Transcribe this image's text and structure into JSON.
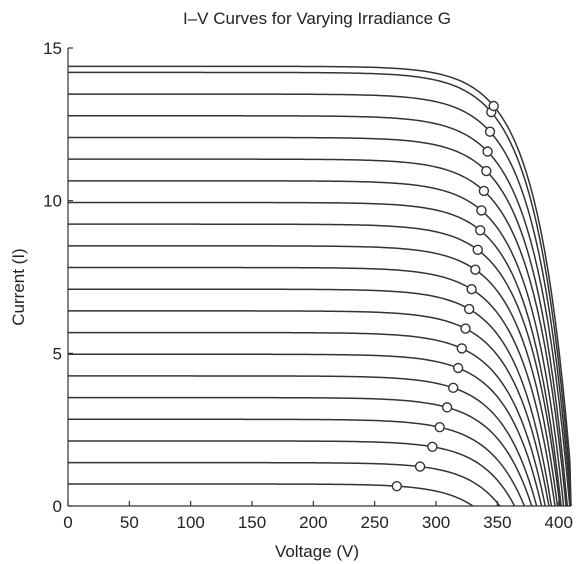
{
  "chart_data": {
    "type": "line",
    "title": "I–V Curves for Varying Irradiance G",
    "xlabel": "Voltage (V)",
    "ylabel": "Current (I)",
    "xlim": [
      0,
      410
    ],
    "ylim": [
      0,
      15
    ],
    "x_ticks": [
      "0",
      "50",
      "100",
      "150",
      "200",
      "250",
      "300",
      "350",
      "400"
    ],
    "y_ticks": [
      "0",
      "5",
      "10",
      "15"
    ],
    "grid": false,
    "legend": "none",
    "line_color": "#333333",
    "series": [
      {
        "isc": 0.72,
        "voc": 330,
        "mpp_v": 268,
        "mpp_i": 0.65
      },
      {
        "isc": 1.42,
        "voc": 352,
        "mpp_v": 287,
        "mpp_i": 1.29
      },
      {
        "isc": 2.13,
        "voc": 364,
        "mpp_v": 297,
        "mpp_i": 1.94
      },
      {
        "isc": 2.84,
        "voc": 372,
        "mpp_v": 303,
        "mpp_i": 2.58
      },
      {
        "isc": 3.55,
        "voc": 378,
        "mpp_v": 309,
        "mpp_i": 3.23
      },
      {
        "isc": 4.26,
        "voc": 382,
        "mpp_v": 314,
        "mpp_i": 3.87
      },
      {
        "isc": 4.97,
        "voc": 386,
        "mpp_v": 318,
        "mpp_i": 4.52
      },
      {
        "isc": 5.68,
        "voc": 389,
        "mpp_v": 321,
        "mpp_i": 5.16
      },
      {
        "isc": 6.39,
        "voc": 392,
        "mpp_v": 324,
        "mpp_i": 5.81
      },
      {
        "isc": 7.1,
        "voc": 394,
        "mpp_v": 327,
        "mpp_i": 6.45
      },
      {
        "isc": 7.81,
        "voc": 397,
        "mpp_v": 329,
        "mpp_i": 7.1
      },
      {
        "isc": 8.52,
        "voc": 399,
        "mpp_v": 332,
        "mpp_i": 7.74
      },
      {
        "isc": 9.23,
        "voc": 401,
        "mpp_v": 334,
        "mpp_i": 8.39
      },
      {
        "isc": 9.94,
        "voc": 402,
        "mpp_v": 336,
        "mpp_i": 9.03
      },
      {
        "isc": 10.65,
        "voc": 404,
        "mpp_v": 337,
        "mpp_i": 9.68
      },
      {
        "isc": 11.36,
        "voc": 406,
        "mpp_v": 339,
        "mpp_i": 10.32
      },
      {
        "isc": 12.07,
        "voc": 407,
        "mpp_v": 341,
        "mpp_i": 10.97
      },
      {
        "isc": 12.78,
        "voc": 409,
        "mpp_v": 342,
        "mpp_i": 11.61
      },
      {
        "isc": 13.49,
        "voc": 410,
        "mpp_v": 344,
        "mpp_i": 12.26
      },
      {
        "isc": 14.2,
        "voc": 411,
        "mpp_v": 345,
        "mpp_i": 12.9
      },
      {
        "isc": 14.4,
        "voc": 412,
        "mpp_v": 347,
        "mpp_i": 13.1
      }
    ]
  }
}
